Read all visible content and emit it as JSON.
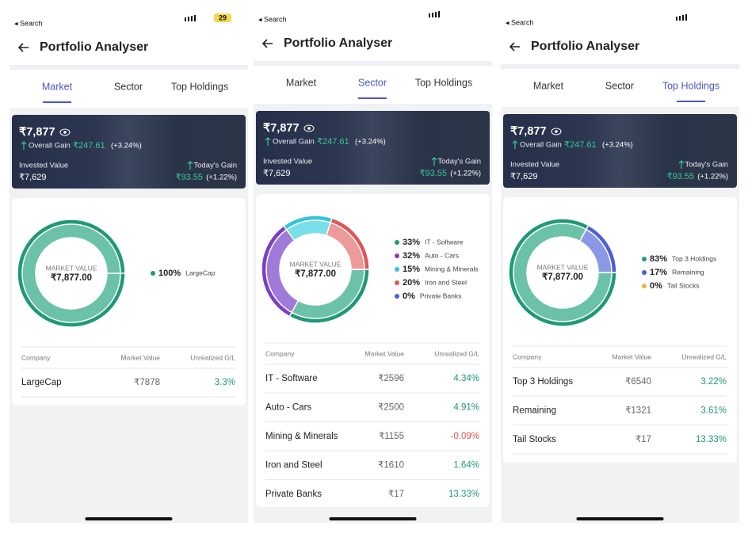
{
  "app": {
    "title": "Portfolio Analyser",
    "tabs": [
      "Market",
      "Sector",
      "Top Holdings"
    ],
    "summary": {
      "value": "₹7,877",
      "overall_gain_label": "Overall Gain",
      "overall_gain": "₹247.61",
      "overall_gain_pct": "(+3.24%)",
      "invested_label": "Invested Value",
      "invested": "₹7,629",
      "today_label": "Today's Gain",
      "today_gain": "₹93.55",
      "today_pct": "(+1.22%)"
    },
    "center_label": "MARKET VALUE",
    "center_value": "₹7,877.00",
    "table_header": [
      "Company",
      "Market Value",
      "Unrealized G/L"
    ]
  },
  "screens": [
    {
      "status_left": "◂ Search",
      "battery": "29",
      "active_tab": 0,
      "legend": [
        {
          "name": "LargeCap",
          "value": 100,
          "value_label": "100%",
          "color": "#1f9978"
        }
      ],
      "rows": [
        [
          "LargeCap",
          "₹7878",
          "3.3%"
        ]
      ]
    },
    {
      "status_left": "◂ Search",
      "active_tab": 1,
      "legend": [
        {
          "name": "IT - Software",
          "value": 33,
          "value_label": "33%",
          "color": "#1f9978"
        },
        {
          "name": "Auto - Cars",
          "value": 32,
          "value_label": "32%",
          "color": "#7b3fc4"
        },
        {
          "name": "Mining & Minerals",
          "value": 15,
          "value_label": "15%",
          "color": "#33c6d6"
        },
        {
          "name": "Iron and Steel",
          "value": 20,
          "value_label": "20%",
          "color": "#e05656"
        },
        {
          "name": "Private Banks",
          "value": 0,
          "value_label": "0%",
          "color": "#4a5fd6"
        }
      ],
      "rows": [
        [
          "IT - Software",
          "₹2596",
          "4.34%"
        ],
        [
          "Auto - Cars",
          "₹2500",
          "4.91%"
        ],
        [
          "Mining & Minerals",
          "₹1155",
          "-0.09%"
        ],
        [
          "Iron and Steel",
          "₹1610",
          "1.64%"
        ],
        [
          "Private Banks",
          "₹17",
          "13.33%"
        ]
      ]
    },
    {
      "status_left": "◂ Search",
      "active_tab": 2,
      "legend": [
        {
          "name": "Top 3 Holdings",
          "value": 83,
          "value_label": "83%",
          "color": "#1f9978"
        },
        {
          "name": "Remaining",
          "value": 17,
          "value_label": "17%",
          "color": "#4a5fd6"
        },
        {
          "name": "Tail Stocks",
          "value": 0,
          "value_label": "0%",
          "color": "#f0b43c"
        }
      ],
      "rows": [
        [
          "Top 3 Holdings",
          "₹6540",
          "3.22%"
        ],
        [
          "Remaining",
          "₹1321",
          "3.61%"
        ],
        [
          "Tail Stocks",
          "₹17",
          "13.33%"
        ]
      ]
    }
  ]
}
